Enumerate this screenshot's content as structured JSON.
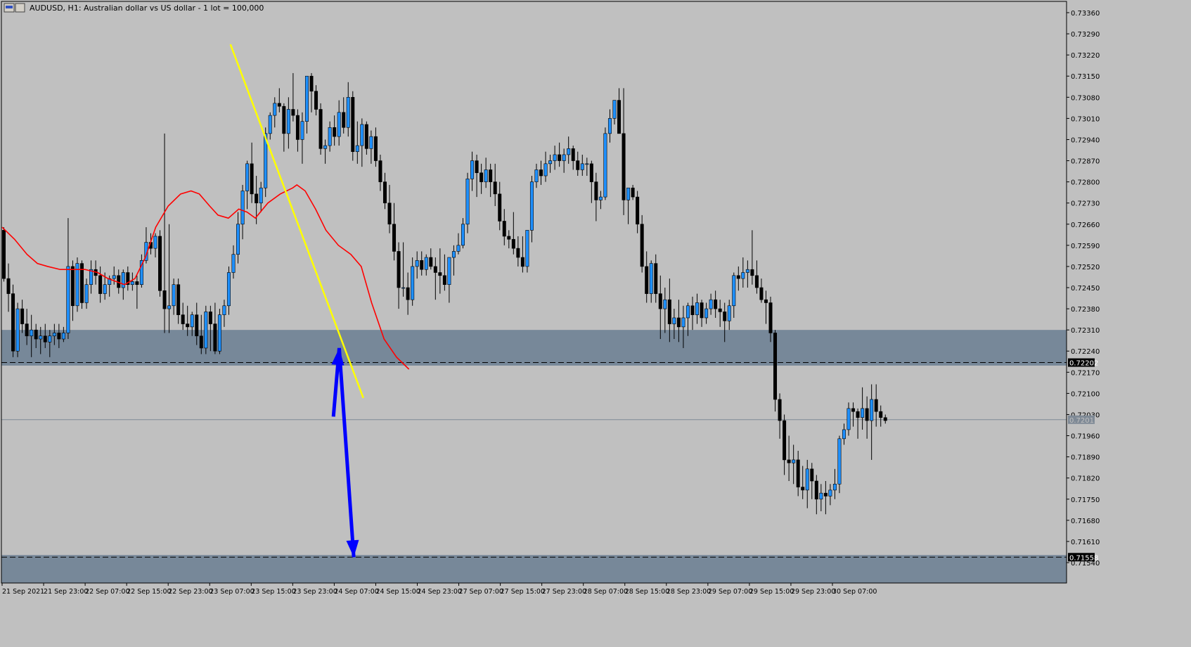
{
  "header": {
    "symbol_text": "AUDUSD, H1:  Australian dollar vs US dollar - 1 lot = 100,000"
  },
  "colors": {
    "background": "#c0c0c0",
    "zone": "#778899",
    "candle_up": "#1e90ff",
    "candle_down": "#000000",
    "moving_average": "#ff0000",
    "trendline": "#ffff00",
    "projection_arrow": "#0000ff"
  },
  "chart_data": {
    "type": "candlestick",
    "symbol": "AUDUSD",
    "timeframe": "H1",
    "y_range": [
      0.7149,
      0.7339
    ],
    "y_ticks": [
      "0.73360",
      "0.73290",
      "0.73220",
      "0.73150",
      "0.73080",
      "0.73010",
      "0.72940",
      "0.72870",
      "0.72800",
      "0.72730",
      "0.72660",
      "0.72590",
      "0.72520",
      "0.72450",
      "0.72380",
      "0.72310",
      "0.72240",
      "0.72170",
      "0.72100",
      "0.72030",
      "0.71960",
      "0.71890",
      "0.71820",
      "0.71750",
      "0.71680",
      "0.71610",
      "0.71540"
    ],
    "x_ticks": [
      "21 Sep 2021",
      "21 Sep 23:00",
      "22 Sep 07:00",
      "22 Sep 15:00",
      "22 Sep 23:00",
      "23 Sep 07:00",
      "23 Sep 15:00",
      "23 Sep 23:00",
      "24 Sep 07:00",
      "24 Sep 15:00",
      "24 Sep 23:00",
      "27 Sep 07:00",
      "27 Sep 15:00",
      "27 Sep 23:00",
      "28 Sep 07:00",
      "28 Sep 15:00",
      "28 Sep 23:00",
      "29 Sep 07:00",
      "29 Sep 15:00",
      "29 Sep 23:00",
      "30 Sep 07:00"
    ],
    "price_labels": {
      "upper_level": "0.72202",
      "current": "0.72013",
      "lower_level": "0.71558"
    },
    "zones": [
      {
        "from": 0.72192,
        "to": 0.7231
      },
      {
        "from": 0.7147,
        "to": 0.71565
      }
    ],
    "levels": [
      {
        "price": 0.72202,
        "style": "dashed"
      },
      {
        "price": 0.71558,
        "style": "dashed"
      },
      {
        "price": 0.72013,
        "style": "solid"
      }
    ],
    "trendline": {
      "from": [
        5.5,
        0.73255
      ],
      "to": [
        8.7,
        0.72085
      ]
    },
    "projection_path": [
      [
        7.98,
        0.72023
      ],
      [
        8.12,
        0.7225
      ],
      [
        8.47,
        0.71558
      ]
    ],
    "candles": [
      [
        0.7264,
        0.7265,
        0.7247,
        0.7248
      ],
      [
        0.7248,
        0.7253,
        0.7237,
        0.7243
      ],
      [
        0.7243,
        0.7246,
        0.7222,
        0.7224
      ],
      [
        0.7224,
        0.724,
        0.7222,
        0.7238
      ],
      [
        0.7238,
        0.7241,
        0.723,
        0.7233
      ],
      [
        0.7233,
        0.7238,
        0.7226,
        0.7229
      ],
      [
        0.7229,
        0.7236,
        0.7222,
        0.7231
      ],
      [
        0.7231,
        0.7233,
        0.7225,
        0.7228
      ],
      [
        0.7228,
        0.7232,
        0.7223,
        0.7229
      ],
      [
        0.7229,
        0.7233,
        0.7225,
        0.7227
      ],
      [
        0.7227,
        0.7231,
        0.7222,
        0.7229
      ],
      [
        0.7229,
        0.7233,
        0.7226,
        0.723
      ],
      [
        0.723,
        0.7233,
        0.7225,
        0.7228
      ],
      [
        0.7228,
        0.7232,
        0.7227,
        0.723
      ],
      [
        0.723,
        0.7268,
        0.7228,
        0.7252
      ],
      [
        0.7252,
        0.7254,
        0.7234,
        0.7239
      ],
      [
        0.7239,
        0.7255,
        0.7237,
        0.7253
      ],
      [
        0.7253,
        0.7254,
        0.7238,
        0.724
      ],
      [
        0.724,
        0.7248,
        0.7238,
        0.7246
      ],
      [
        0.7246,
        0.7254,
        0.7243,
        0.7251
      ],
      [
        0.7251,
        0.7254,
        0.7246,
        0.7249
      ],
      [
        0.7249,
        0.7252,
        0.724,
        0.7243
      ],
      [
        0.7243,
        0.725,
        0.7241,
        0.7246
      ],
      [
        0.7246,
        0.7249,
        0.7242,
        0.7248
      ],
      [
        0.7248,
        0.7252,
        0.7246,
        0.7249
      ],
      [
        0.7249,
        0.7251,
        0.7243,
        0.7245
      ],
      [
        0.7245,
        0.7251,
        0.7241,
        0.725
      ],
      [
        0.725,
        0.7252,
        0.7244,
        0.7246
      ],
      [
        0.7246,
        0.725,
        0.7244,
        0.7247
      ],
      [
        0.7247,
        0.7249,
        0.7238,
        0.7246
      ],
      [
        0.7246,
        0.7256,
        0.7245,
        0.7254
      ],
      [
        0.7254,
        0.7265,
        0.7253,
        0.726
      ],
      [
        0.726,
        0.7263,
        0.7256,
        0.7258
      ],
      [
        0.7258,
        0.7263,
        0.7255,
        0.7262
      ],
      [
        0.7262,
        0.7264,
        0.7242,
        0.7244
      ],
      [
        0.7244,
        0.7296,
        0.723,
        0.7238
      ],
      [
        0.7238,
        0.7266,
        0.723,
        0.7239
      ],
      [
        0.7239,
        0.7248,
        0.7236,
        0.7246
      ],
      [
        0.7246,
        0.7248,
        0.7233,
        0.7236
      ],
      [
        0.7236,
        0.724,
        0.7231,
        0.7233
      ],
      [
        0.7233,
        0.7239,
        0.7229,
        0.7232
      ],
      [
        0.7232,
        0.7237,
        0.7229,
        0.7236
      ],
      [
        0.7236,
        0.724,
        0.7226,
        0.7229
      ],
      [
        0.7229,
        0.7236,
        0.7223,
        0.7225
      ],
      [
        0.7225,
        0.7239,
        0.7223,
        0.7237
      ],
      [
        0.7237,
        0.7239,
        0.7224,
        0.7233
      ],
      [
        0.7233,
        0.724,
        0.7223,
        0.7224
      ],
      [
        0.7224,
        0.7238,
        0.7223,
        0.7236
      ],
      [
        0.7236,
        0.7241,
        0.7232,
        0.7239
      ],
      [
        0.7239,
        0.7252,
        0.7236,
        0.725
      ],
      [
        0.725,
        0.7259,
        0.7248,
        0.7256
      ],
      [
        0.7256,
        0.727,
        0.7253,
        0.7266
      ],
      [
        0.7266,
        0.7279,
        0.7261,
        0.7277
      ],
      [
        0.7277,
        0.7287,
        0.7271,
        0.7286
      ],
      [
        0.7286,
        0.7293,
        0.7273,
        0.7276
      ],
      [
        0.7276,
        0.7282,
        0.7266,
        0.7273
      ],
      [
        0.7273,
        0.728,
        0.727,
        0.7278
      ],
      [
        0.7278,
        0.7298,
        0.7275,
        0.7296
      ],
      [
        0.7296,
        0.7303,
        0.7294,
        0.7302
      ],
      [
        0.7302,
        0.7308,
        0.7298,
        0.7306
      ],
      [
        0.7306,
        0.7311,
        0.7303,
        0.7305
      ],
      [
        0.7305,
        0.7306,
        0.729,
        0.7296
      ],
      [
        0.7296,
        0.7308,
        0.7291,
        0.7304
      ],
      [
        0.7304,
        0.7316,
        0.73,
        0.7302
      ],
      [
        0.7302,
        0.7304,
        0.729,
        0.7294
      ],
      [
        0.7294,
        0.7303,
        0.7286,
        0.73
      ],
      [
        0.73,
        0.7315,
        0.7296,
        0.7315
      ],
      [
        0.7315,
        0.7316,
        0.7303,
        0.731
      ],
      [
        0.731,
        0.7312,
        0.7302,
        0.7304
      ],
      [
        0.7304,
        0.7306,
        0.7289,
        0.7291
      ],
      [
        0.7291,
        0.7294,
        0.7286,
        0.7292
      ],
      [
        0.7292,
        0.73,
        0.729,
        0.7298
      ],
      [
        0.7298,
        0.7302,
        0.7292,
        0.7295
      ],
      [
        0.7295,
        0.7307,
        0.7292,
        0.7303
      ],
      [
        0.7303,
        0.7308,
        0.7296,
        0.7298
      ],
      [
        0.7298,
        0.7313,
        0.7295,
        0.7308
      ],
      [
        0.7308,
        0.731,
        0.7287,
        0.729
      ],
      [
        0.729,
        0.73,
        0.7286,
        0.7292
      ],
      [
        0.7292,
        0.7301,
        0.7285,
        0.7299
      ],
      [
        0.7299,
        0.73,
        0.7289,
        0.7291
      ],
      [
        0.7291,
        0.7297,
        0.7286,
        0.7295
      ],
      [
        0.7295,
        0.7298,
        0.7285,
        0.7287
      ],
      [
        0.7287,
        0.7289,
        0.7277,
        0.728
      ],
      [
        0.728,
        0.7283,
        0.7271,
        0.7273
      ],
      [
        0.7273,
        0.7279,
        0.7263,
        0.7266
      ],
      [
        0.7266,
        0.7273,
        0.7254,
        0.7257
      ],
      [
        0.7257,
        0.726,
        0.7238,
        0.7245
      ],
      [
        0.7245,
        0.726,
        0.7242,
        0.7245
      ],
      [
        0.7245,
        0.725,
        0.7236,
        0.7241
      ],
      [
        0.7241,
        0.7255,
        0.7239,
        0.7252
      ],
      [
        0.7252,
        0.7257,
        0.7248,
        0.7254
      ],
      [
        0.7254,
        0.7257,
        0.7249,
        0.7251
      ],
      [
        0.7251,
        0.7256,
        0.7249,
        0.7255
      ],
      [
        0.7255,
        0.7258,
        0.7251,
        0.7252
      ],
      [
        0.7252,
        0.7255,
        0.7241,
        0.725
      ],
      [
        0.725,
        0.7258,
        0.7243,
        0.7249
      ],
      [
        0.7249,
        0.7256,
        0.7244,
        0.7246
      ],
      [
        0.7246,
        0.7255,
        0.724,
        0.7255
      ],
      [
        0.7255,
        0.7259,
        0.7249,
        0.7257
      ],
      [
        0.7257,
        0.7263,
        0.7256,
        0.7259
      ],
      [
        0.7259,
        0.7268,
        0.7258,
        0.7266
      ],
      [
        0.7266,
        0.7283,
        0.7263,
        0.7281
      ],
      [
        0.7281,
        0.729,
        0.7277,
        0.7287
      ],
      [
        0.7287,
        0.7289,
        0.7275,
        0.7283
      ],
      [
        0.7283,
        0.7286,
        0.7276,
        0.728
      ],
      [
        0.728,
        0.7288,
        0.7278,
        0.7284
      ],
      [
        0.7284,
        0.7286,
        0.7275,
        0.728
      ],
      [
        0.728,
        0.7286,
        0.7272,
        0.7276
      ],
      [
        0.7276,
        0.728,
        0.7264,
        0.7267
      ],
      [
        0.7267,
        0.7271,
        0.7259,
        0.7262
      ],
      [
        0.7262,
        0.7264,
        0.7258,
        0.7261
      ],
      [
        0.7261,
        0.727,
        0.7256,
        0.7258
      ],
      [
        0.7258,
        0.7262,
        0.7252,
        0.7255
      ],
      [
        0.7255,
        0.7262,
        0.725,
        0.7252
      ],
      [
        0.7252,
        0.7264,
        0.725,
        0.7264
      ],
      [
        0.7264,
        0.7282,
        0.726,
        0.728
      ],
      [
        0.728,
        0.7286,
        0.7278,
        0.7284
      ],
      [
        0.7284,
        0.7287,
        0.7279,
        0.7282
      ],
      [
        0.7282,
        0.729,
        0.728,
        0.7286
      ],
      [
        0.7286,
        0.7289,
        0.7283,
        0.7287
      ],
      [
        0.7287,
        0.7292,
        0.7284,
        0.7289
      ],
      [
        0.7289,
        0.7293,
        0.7285,
        0.7287
      ],
      [
        0.7287,
        0.7291,
        0.7283,
        0.7289
      ],
      [
        0.7289,
        0.7295,
        0.7286,
        0.7291
      ],
      [
        0.7291,
        0.7292,
        0.7284,
        0.7287
      ],
      [
        0.7287,
        0.729,
        0.7282,
        0.7284
      ],
      [
        0.7284,
        0.7289,
        0.7282,
        0.7286
      ],
      [
        0.7286,
        0.7288,
        0.7282,
        0.7286
      ],
      [
        0.7286,
        0.7287,
        0.7273,
        0.728
      ],
      [
        0.728,
        0.7283,
        0.7267,
        0.7274
      ],
      [
        0.7274,
        0.7277,
        0.7271,
        0.7275
      ],
      [
        0.7275,
        0.7298,
        0.7274,
        0.7296
      ],
      [
        0.7296,
        0.7304,
        0.7293,
        0.7301
      ],
      [
        0.7301,
        0.7307,
        0.7299,
        0.7307
      ],
      [
        0.7307,
        0.7311,
        0.7296,
        0.7296
      ],
      [
        0.7296,
        0.7311,
        0.7269,
        0.7274
      ],
      [
        0.7274,
        0.7278,
        0.7266,
        0.7278
      ],
      [
        0.7278,
        0.7279,
        0.7274,
        0.7275
      ],
      [
        0.7275,
        0.7277,
        0.7263,
        0.7266
      ],
      [
        0.7266,
        0.7269,
        0.725,
        0.7252
      ],
      [
        0.7252,
        0.7257,
        0.724,
        0.7243
      ],
      [
        0.7243,
        0.7254,
        0.724,
        0.7253
      ],
      [
        0.7253,
        0.7256,
        0.724,
        0.7243
      ],
      [
        0.7243,
        0.7249,
        0.7228,
        0.7238
      ],
      [
        0.7238,
        0.7245,
        0.723,
        0.7241
      ],
      [
        0.7241,
        0.7248,
        0.7227,
        0.7233
      ],
      [
        0.7233,
        0.7238,
        0.7228,
        0.7235
      ],
      [
        0.7235,
        0.7241,
        0.7227,
        0.7232
      ],
      [
        0.7232,
        0.7239,
        0.7225,
        0.7235
      ],
      [
        0.7235,
        0.724,
        0.7229,
        0.7239
      ],
      [
        0.7239,
        0.7242,
        0.7231,
        0.7236
      ],
      [
        0.7236,
        0.7243,
        0.7233,
        0.724
      ],
      [
        0.724,
        0.7241,
        0.7232,
        0.7235
      ],
      [
        0.7235,
        0.724,
        0.7233,
        0.7238
      ],
      [
        0.7238,
        0.7243,
        0.7236,
        0.7241
      ],
      [
        0.7241,
        0.7244,
        0.7235,
        0.7238
      ],
      [
        0.7238,
        0.7241,
        0.7232,
        0.7237
      ],
      [
        0.7237,
        0.724,
        0.7227,
        0.7234
      ],
      [
        0.7234,
        0.7241,
        0.7231,
        0.7239
      ],
      [
        0.7239,
        0.725,
        0.7235,
        0.7249
      ],
      [
        0.7249,
        0.7252,
        0.7244,
        0.7248
      ],
      [
        0.7248,
        0.7255,
        0.7245,
        0.725
      ],
      [
        0.725,
        0.7254,
        0.7245,
        0.7251
      ],
      [
        0.7251,
        0.7264,
        0.7246,
        0.7249
      ],
      [
        0.7249,
        0.7254,
        0.7243,
        0.7245
      ],
      [
        0.7245,
        0.7248,
        0.724,
        0.7241
      ],
      [
        0.7241,
        0.7244,
        0.7233,
        0.724
      ],
      [
        0.724,
        0.7242,
        0.7227,
        0.723
      ],
      [
        0.723,
        0.7231,
        0.7204,
        0.7208
      ],
      [
        0.7208,
        0.721,
        0.7195,
        0.7201
      ],
      [
        0.7201,
        0.7203,
        0.7183,
        0.7188
      ],
      [
        0.7188,
        0.7196,
        0.7181,
        0.7187
      ],
      [
        0.7187,
        0.7193,
        0.718,
        0.7188
      ],
      [
        0.7188,
        0.7191,
        0.7176,
        0.7179
      ],
      [
        0.7179,
        0.7186,
        0.7175,
        0.7178
      ],
      [
        0.7178,
        0.7188,
        0.7172,
        0.7185
      ],
      [
        0.7185,
        0.7187,
        0.7175,
        0.7181
      ],
      [
        0.7181,
        0.7183,
        0.717,
        0.7175
      ],
      [
        0.7175,
        0.718,
        0.7171,
        0.7177
      ],
      [
        0.7177,
        0.7181,
        0.717,
        0.7176
      ],
      [
        0.7176,
        0.718,
        0.7173,
        0.7178
      ],
      [
        0.7178,
        0.7185,
        0.7175,
        0.718
      ],
      [
        0.718,
        0.7196,
        0.7177,
        0.7195
      ],
      [
        0.7195,
        0.72,
        0.7193,
        0.7198
      ],
      [
        0.7198,
        0.7207,
        0.7196,
        0.7205
      ],
      [
        0.7205,
        0.7207,
        0.7199,
        0.7204
      ],
      [
        0.7204,
        0.7205,
        0.7195,
        0.7202
      ],
      [
        0.7202,
        0.7212,
        0.7198,
        0.7205
      ],
      [
        0.7205,
        0.7209,
        0.7195,
        0.7201
      ],
      [
        0.7201,
        0.7213,
        0.7188,
        0.7208
      ],
      [
        0.7208,
        0.7213,
        0.7199,
        0.7204
      ],
      [
        0.7204,
        0.7206,
        0.7199,
        0.7202
      ],
      [
        0.7202,
        0.7203,
        0.72,
        0.7201
      ]
    ],
    "moving_average": [
      [
        0.0,
        0.7265
      ],
      [
        0.3,
        0.7261
      ],
      [
        0.6,
        0.7256
      ],
      [
        0.85,
        0.7253
      ],
      [
        1.1,
        0.7252
      ],
      [
        1.4,
        0.7251
      ],
      [
        1.7,
        0.7251
      ],
      [
        2.0,
        0.7251
      ],
      [
        2.3,
        0.725
      ],
      [
        2.55,
        0.7248
      ],
      [
        2.75,
        0.7247
      ],
      [
        2.95,
        0.7246
      ],
      [
        3.2,
        0.7248
      ],
      [
        3.45,
        0.7255
      ],
      [
        3.7,
        0.7265
      ],
      [
        4.0,
        0.7272
      ],
      [
        4.3,
        0.7276
      ],
      [
        4.55,
        0.7277
      ],
      [
        4.75,
        0.7276
      ],
      [
        5.0,
        0.7272
      ],
      [
        5.2,
        0.7269
      ],
      [
        5.45,
        0.7268
      ],
      [
        5.7,
        0.7271
      ],
      [
        5.9,
        0.727
      ],
      [
        6.1,
        0.7268
      ],
      [
        6.4,
        0.7273
      ],
      [
        6.7,
        0.7276
      ],
      [
        7.0,
        0.7278
      ],
      [
        7.1,
        0.7279
      ],
      [
        7.3,
        0.7277
      ],
      [
        7.55,
        0.7271
      ],
      [
        7.8,
        0.7264
      ],
      [
        8.1,
        0.7259
      ],
      [
        8.4,
        0.7256
      ],
      [
        8.65,
        0.7252
      ],
      [
        8.9,
        0.724
      ],
      [
        9.2,
        0.7228
      ],
      [
        9.5,
        0.7222
      ],
      [
        9.8,
        0.7218
      ]
    ]
  }
}
